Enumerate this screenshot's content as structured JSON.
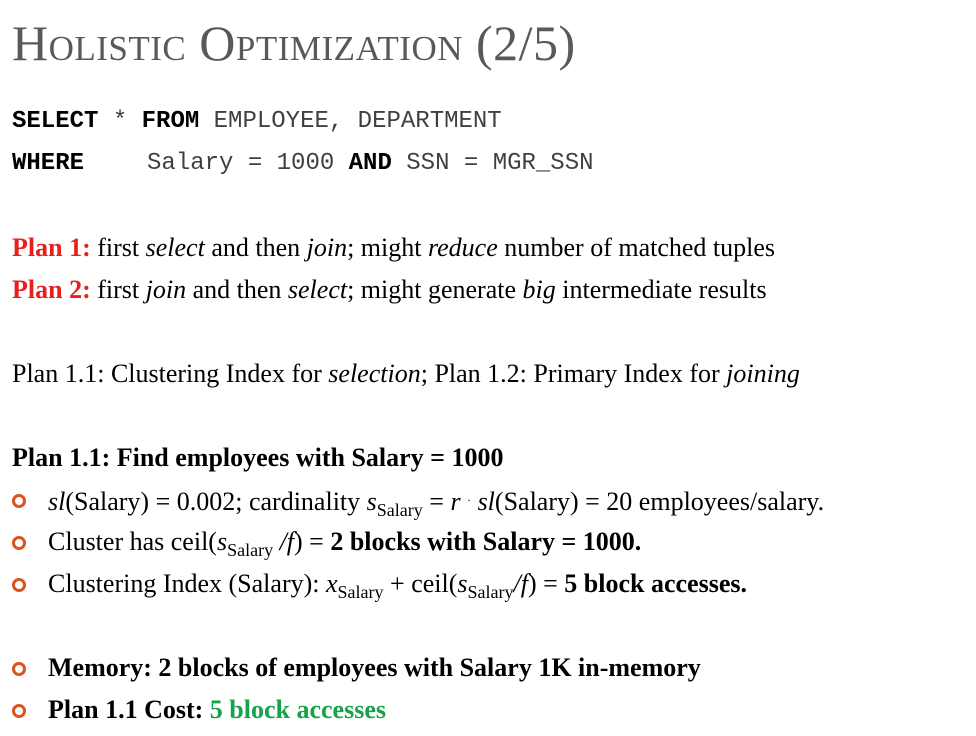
{
  "title": "Holistic Optimization (2/5)",
  "query": {
    "select_kw": "SELECT",
    "star": "*",
    "from_kw": "FROM",
    "tables": "EMPLOYEE, DEPARTMENT",
    "where_kw": "WHERE",
    "cond1": "Salary = 1000",
    "and_kw": "AND",
    "cond2": "SSN = MGR_SSN"
  },
  "plans": {
    "p1_label": "Plan 1:",
    "p1_a": "first",
    "p1_b": "select",
    "p1_c": "and then",
    "p1_d": "join",
    "p1_e": "; might",
    "p1_f": "reduce",
    "p1_g": "number of matched tuples",
    "p2_label": "Plan 2:",
    "p2_a": "first",
    "p2_b": "join",
    "p2_c": "and then",
    "p2_d": "select",
    "p2_e": "; might generate",
    "p2_f": "big",
    "p2_g": "intermediate results"
  },
  "subplans": {
    "a": "Plan 1.1: Clustering Index for",
    "b": "selection",
    "c": "; Plan 1.2: Primary Index for",
    "d": "joining"
  },
  "heading": "Plan 1.1: Find employees with Salary = 1000",
  "bullets": {
    "b1_sl": "sl",
    "b1_a": "(Salary) = 0.002; cardinality",
    "b1_s": "s",
    "b1_sub": "Salary",
    "b1_eq": "=",
    "b1_r": "r",
    "b1_dot": "·",
    "b1_sl2": "sl",
    "b1_b": "(Salary) = 20 employees/salary.",
    "b2_a": "Cluster has ceil(",
    "b2_s": "s",
    "b2_sub": "Salary",
    "b2_f": "/f",
    "b2_b": ") =",
    "b2_bold": "2 blocks with Salary = 1000.",
    "b3_a": "Clustering Index (Salary):",
    "b3_x": "x",
    "b3_sub1": "Salary",
    "b3_b": "+ ceil(",
    "b3_s": "s",
    "b3_sub2": "Salary",
    "b3_f": "/f",
    "b3_c": ") =",
    "b3_bold": "5 block accesses.",
    "b4": "Memory: 2 blocks of employees with Salary 1K in-memory",
    "b5_label": "Plan 1.1 Cost:",
    "b5_value": "5 block accesses"
  },
  "colors": {
    "title": "#595959",
    "red": "#e8201d",
    "green": "#16a34a",
    "bullet": "#d9541e"
  }
}
